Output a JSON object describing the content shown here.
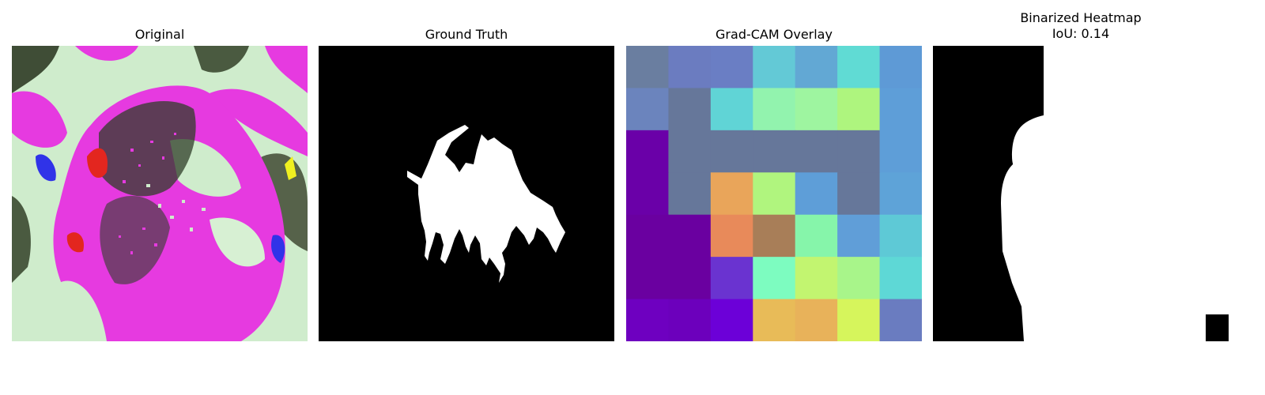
{
  "panels": {
    "original": {
      "title": "Original"
    },
    "ground_truth": {
      "title": "Ground Truth"
    },
    "gradcam": {
      "title": "Grad-CAM Overlay"
    },
    "binarized": {
      "title": "Binarized Heatmap",
      "iou_label": "IoU: 0.14"
    }
  },
  "colors": {
    "magenta": "#e63ae0",
    "pale_green": "#cfeccc",
    "dark_olive": "#3f4d36",
    "blue": "#3033e8",
    "red": "#e3261f",
    "black": "#000000",
    "white": "#ffffff"
  },
  "gradcam_grid": [
    [
      "#6a7ea0",
      "#6b7cc0",
      "#6a7ec4",
      "#63c9d6",
      "#62a8d4",
      "#60dbd4",
      "#5e9ad6"
    ],
    [
      "#6b84bd",
      "#66779a",
      "#60d4d6",
      "#92f3ae",
      "#9ef5a0",
      "#aef57e",
      "#5e9ed8"
    ],
    [
      "#6a00a8",
      "#66779a",
      "#66779a",
      "#66779a",
      "#66779a",
      "#66779a",
      "#5e9ed8"
    ],
    [
      "#6a00a8",
      "#66779a",
      "#e9a55a",
      "#b0f57e",
      "#5e9ed8",
      "#66779a",
      "#5ea3d8"
    ],
    [
      "#6a00a0",
      "#6a00a0",
      "#e88a5a",
      "#a87e58",
      "#86f5aa",
      "#609ed8",
      "#5ec9d6"
    ],
    [
      "#6a00a0",
      "#6a00a0",
      "#6a33d0",
      "#7dfcc0",
      "#c2f570",
      "#a8f58a",
      "#5ed8d6"
    ],
    [
      "#6e00c0",
      "#6c00bc",
      "#6c00d8",
      "#e8bb58",
      "#e8b25a",
      "#d6f55c",
      "#6a7cc0"
    ]
  ]
}
